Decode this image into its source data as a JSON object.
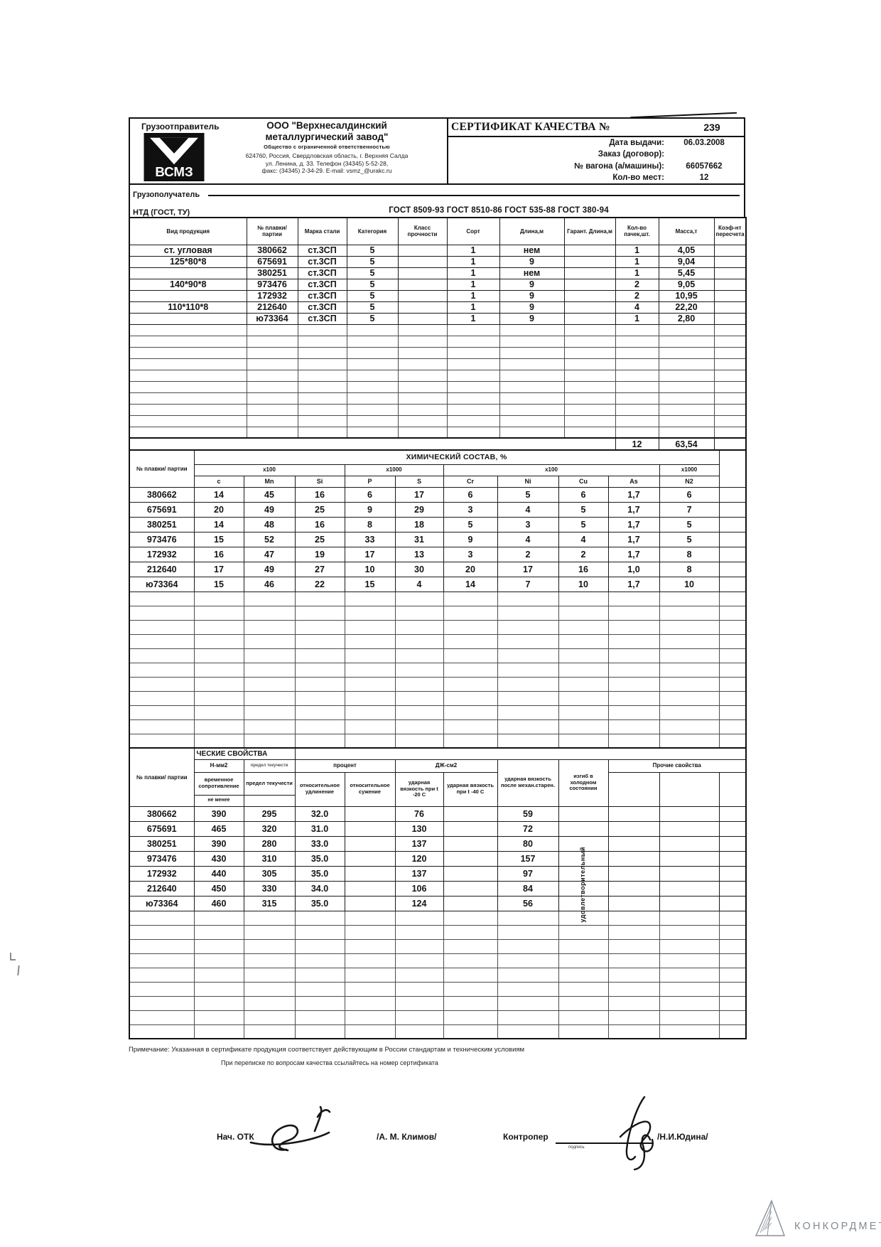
{
  "shipper": {
    "label": "Грузоотправитель",
    "logo_text": "ВСМЗ",
    "name_line1": "ООО \"Верхнесалдинский",
    "name_line2": "металлургический завод\"",
    "subtitle": "Общество с ограниченной ответственностью",
    "address_line1": "624760, Россия, Свердловская область, г. Верхняя Салда",
    "address_line2": "ул. Ленина, д. 33. Телефон (34345) 5-52-28,",
    "address_line3": "факс: (34345) 2-34-29. E-mail: vsmz_@urakc.ru"
  },
  "certificate": {
    "title": "СЕРТИФИКАТ КАЧЕСТВА №",
    "number": "239",
    "fields": [
      {
        "label": "Дата выдачи:",
        "value": "06.03.2008"
      },
      {
        "label": "Заказ (договор):",
        "value": ""
      },
      {
        "label": "№ вагона (а/машины):",
        "value": "66057662"
      },
      {
        "label": "Кол-во мест:",
        "value": "12"
      }
    ]
  },
  "consignee_label": "Грузополучатель",
  "ntd": {
    "label": "НТД (ГОСТ, ТУ)",
    "value": "ГОСТ 8509-93 ГОСТ 8510-86 ГОСТ 535-88 ГОСТ 380-94"
  },
  "products_table": {
    "headers": [
      "Вид продукция",
      "№ плавки/ партии",
      "Марка стали",
      "Категория",
      "Класс прочности",
      "Сорт",
      "Длина,м",
      "Гарант. Длина,м",
      "Кол-во пачек,шт.",
      "Масса,т",
      "Коэф-нт пересчета"
    ],
    "rows": [
      [
        "ст. угловая",
        "380662",
        "ст.3СП",
        "5",
        "",
        "1",
        "нем",
        "",
        "1",
        "4,05",
        ""
      ],
      [
        "125*80*8",
        "675691",
        "ст.3СП",
        "5",
        "",
        "1",
        "9",
        "",
        "1",
        "9,04",
        ""
      ],
      [
        "",
        "380251",
        "ст.3СП",
        "5",
        "",
        "1",
        "нем",
        "",
        "1",
        "5,45",
        ""
      ],
      [
        "140*90*8",
        "973476",
        "ст.3СП",
        "5",
        "",
        "1",
        "9",
        "",
        "2",
        "9,05",
        ""
      ],
      [
        "",
        "172932",
        "ст.3СП",
        "5",
        "",
        "1",
        "9",
        "",
        "2",
        "10,95",
        ""
      ],
      [
        "110*110*8",
        "212640",
        "ст.3СП",
        "5",
        "",
        "1",
        "9",
        "",
        "4",
        "22,20",
        ""
      ],
      [
        "",
        "ю73364",
        "ст.3СП",
        "5",
        "",
        "1",
        "9",
        "",
        "1",
        "2,80",
        ""
      ]
    ],
    "total_packs": "12",
    "total_mass": "63,54"
  },
  "chemical_table": {
    "id_header": "№ плавки/ партии",
    "title": "ХИМИЧЕСКИЙ СОСТАВ, %",
    "g1": "x100",
    "g2": "x1000",
    "g3": "x100",
    "g4": "x1000",
    "elements": [
      "с",
      "Mn",
      "Si",
      "P",
      "S",
      "Cr",
      "Ni",
      "Cu",
      "As",
      "N2"
    ],
    "rows": [
      [
        "380662",
        "14",
        "45",
        "16",
        "6",
        "17",
        "6",
        "5",
        "6",
        "1,7",
        "6",
        ""
      ],
      [
        "675691",
        "20",
        "49",
        "25",
        "9",
        "29",
        "3",
        "4",
        "5",
        "1,7",
        "7",
        ""
      ],
      [
        "380251",
        "14",
        "48",
        "16",
        "8",
        "18",
        "5",
        "3",
        "5",
        "1,7",
        "5",
        ""
      ],
      [
        "973476",
        "15",
        "52",
        "25",
        "33",
        "31",
        "9",
        "4",
        "4",
        "1,7",
        "5",
        ""
      ],
      [
        "172932",
        "16",
        "47",
        "19",
        "17",
        "13",
        "3",
        "2",
        "2",
        "1,7",
        "8",
        ""
      ],
      [
        "212640",
        "17",
        "49",
        "27",
        "10",
        "30",
        "20",
        "17",
        "16",
        "1,0",
        "8",
        ""
      ],
      [
        "ю73364",
        "15",
        "46",
        "22",
        "15",
        "4",
        "14",
        "7",
        "10",
        "1,7",
        "10",
        ""
      ]
    ]
  },
  "mech_table": {
    "title_partial": "ЧЕСКИЕ СВОЙСТВА",
    "id_header": "№ плавки/ партии",
    "group_nmm2": "Н-мм2",
    "yield_top_fuzzy": "предел текучести",
    "col_tensile": "временное сопротивление",
    "col_yield": "предел текучести",
    "note_min": "не менее",
    "group_percent": "процент",
    "col_elong": "относительное удлинение",
    "col_contraction": "относительное сужение",
    "group_dj": "ДЖ-см2",
    "col_impact20": "ударная вязкость при t -20  С",
    "col_impact40": "ударная вязкость при t -40 С",
    "col_impact_aged": "ударная вязкость после механ.старен.",
    "col_bend": "изгиб в холодном состоянии",
    "bend_value": "удовлетворительный",
    "group_other": "Прочие свойства",
    "rows": [
      [
        "380662",
        "390",
        "295",
        "32.0",
        "",
        "76",
        "",
        "59",
        "",
        "",
        "",
        ""
      ],
      [
        "675691",
        "465",
        "320",
        "31.0",
        "",
        "130",
        "",
        "72",
        "",
        "",
        "",
        ""
      ],
      [
        "380251",
        "390",
        "280",
        "33.0",
        "",
        "137",
        "",
        "80",
        "",
        "",
        "",
        ""
      ],
      [
        "973476",
        "430",
        "310",
        "35.0",
        "",
        "120",
        "",
        "157",
        "",
        "",
        "",
        ""
      ],
      [
        "172932",
        "440",
        "305",
        "35.0",
        "",
        "137",
        "",
        "97",
        "",
        "",
        "",
        ""
      ],
      [
        "212640",
        "450",
        "330",
        "34.0",
        "",
        "106",
        "",
        "84",
        "",
        "",
        "",
        ""
      ],
      [
        "ю73364",
        "460",
        "315",
        "35.0",
        "",
        "124",
        "",
        "56",
        "",
        "",
        "",
        ""
      ]
    ]
  },
  "footer": {
    "note1": "Примечание: Указанная в сертификате продукция соответствует действующим в России стандартам и техническим условиям",
    "note2": "При переписке по вопросам качества ссылайтесь на номер сертификата",
    "sig1_label": "Нач. ОТК",
    "sig1_name": "/А. М. Климов/",
    "sig2_label": "Контропер",
    "sig2_subword": "подпись",
    "sig2_name": "/Н.И.Юдина/"
  },
  "watermark_text": "КОНКОРДМЕТАЛЛ"
}
